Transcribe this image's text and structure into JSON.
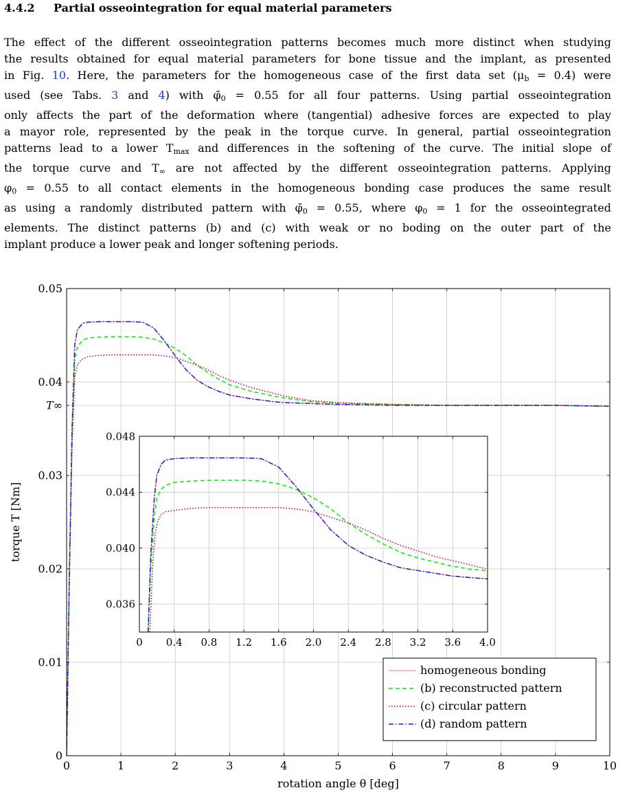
{
  "section": {
    "number": "4.4.2",
    "title": "Partial osseointegration for equal material parameters"
  },
  "paragraph": {
    "l1": "The effect of the different osseointegration patterns becomes much more distinct when studying",
    "l2": "the results obtained for equal material parameters for bone tissue and the implant, as presented",
    "l3a": "in Fig. ",
    "fig_ref": "10",
    "l3b": ". Here, the parameters for the homogeneous case of the first data set (μ",
    "l3sub": "b",
    "l3c": " = 0.4) were",
    "l4a": "used (see Tabs. ",
    "tab_ref1": "3",
    "l4b": " and ",
    "tab_ref2": "4",
    "l4c": ") with φ̄",
    "l4sub": "0",
    "l4d": " = 0.55 for all four patterns.  Using partial osseointegration",
    "l5": "only affects the part of the deformation where (tangential) adhesive forces are expected to play",
    "l6": "a mayor role, represented by the peak in the torque curve.  In general, partial osseointegration",
    "l7a": "patterns lead to a lower T",
    "l7sub": "max",
    "l7b": " and differences in the softening of the curve.  The initial slope of",
    "l8a": "the torque curve and T",
    "l8sub": "∞",
    "l8b": " are not affected by the different osseointegration patterns.  Applying",
    "l9a": "φ",
    "l9sub": "0",
    "l9b": " = 0.55 to all contact elements in the homogeneous bonding case produces the same result",
    "l10a": "as using a randomly distributed pattern with φ̄",
    "l10sub": "0",
    "l10b": " = 0.55, where φ",
    "l10sub2": "0",
    "l10c": " = 1 for the osseointegrated",
    "l11": "elements.  The distinct patterns (b) and (c) with weak or no boding on the outer part of the",
    "l12": "implant produce a lower peak and longer softening periods."
  },
  "chart_data": [
    {
      "type": "line",
      "xlabel": "rotation angle θ [deg]",
      "ylabel": "torque T [Nm]",
      "xlim": [
        0,
        10
      ],
      "ylim": [
        0,
        0.05
      ],
      "xticks": [
        "0",
        "1",
        "2",
        "3",
        "4",
        "5",
        "6",
        "7",
        "8",
        "9",
        "10"
      ],
      "xtick_values": [
        0,
        1,
        2,
        3,
        4,
        5,
        6,
        7,
        8,
        9,
        10
      ],
      "yticks": [
        "0",
        "0.01",
        "0.02",
        "0.03",
        "0.04",
        "0.05"
      ],
      "ytick_values": [
        0,
        0.01,
        0.02,
        0.03,
        0.04,
        0.05
      ],
      "extra_ytick": {
        "label": "T∞",
        "value": 0.0375
      },
      "grid": true,
      "legend_position": "bottom-right",
      "series": [
        {
          "name": "homogeneous bonding",
          "color": "#f4a6a6",
          "dash": "solid",
          "x": [
            0,
            0.05,
            0.1,
            0.15,
            0.2,
            0.3,
            0.4,
            0.6,
            0.8,
            1.0,
            1.2,
            1.4,
            1.6,
            1.8,
            2.0,
            2.2,
            2.4,
            2.6,
            2.8,
            3.0,
            3.4,
            3.8,
            4.0,
            4.5,
            5,
            6,
            7,
            8,
            9,
            10
          ],
          "y": [
            0,
            0.019,
            0.035,
            0.044,
            0.0456,
            0.0463,
            0.0464,
            0.04645,
            0.04645,
            0.04645,
            0.04645,
            0.0464,
            0.0458,
            0.0444,
            0.0428,
            0.0413,
            0.0402,
            0.0395,
            0.039,
            0.0386,
            0.0382,
            0.0379,
            0.0378,
            0.0377,
            0.0376,
            0.0375,
            0.0375,
            0.0375,
            0.0375,
            0.0374
          ]
        },
        {
          "name": "(b) reconstructed pattern",
          "color": "#00ee00",
          "dash": "dashed",
          "x": [
            0,
            0.05,
            0.1,
            0.15,
            0.2,
            0.3,
            0.4,
            0.6,
            0.8,
            1.0,
            1.2,
            1.4,
            1.6,
            1.8,
            2.0,
            2.2,
            2.4,
            2.6,
            2.8,
            3.0,
            3.4,
            3.8,
            4.0,
            4.5,
            5,
            6,
            7,
            8,
            9,
            10
          ],
          "y": [
            0,
            0.019,
            0.034,
            0.0425,
            0.0438,
            0.0445,
            0.0447,
            0.0448,
            0.04485,
            0.04485,
            0.04485,
            0.0448,
            0.0446,
            0.0442,
            0.0436,
            0.0428,
            0.0418,
            0.041,
            0.0403,
            0.0397,
            0.039,
            0.0385,
            0.0383,
            0.0379,
            0.0377,
            0.0376,
            0.0375,
            0.0375,
            0.0375,
            0.0374
          ]
        },
        {
          "name": "(c) circular pattern",
          "color": "#cc0033",
          "dash": "dotted",
          "x": [
            0,
            0.05,
            0.1,
            0.15,
            0.2,
            0.3,
            0.4,
            0.6,
            0.8,
            1.0,
            1.2,
            1.4,
            1.6,
            1.8,
            2.0,
            2.2,
            2.4,
            2.6,
            2.8,
            3.0,
            3.4,
            3.8,
            4.0,
            4.5,
            5,
            6,
            7,
            8,
            9,
            10
          ],
          "y": [
            0,
            0.019,
            0.033,
            0.0405,
            0.0419,
            0.0425,
            0.0427,
            0.04285,
            0.0429,
            0.0429,
            0.0429,
            0.0429,
            0.0429,
            0.0428,
            0.0426,
            0.0422,
            0.0418,
            0.0413,
            0.0407,
            0.0402,
            0.0394,
            0.0388,
            0.0385,
            0.038,
            0.0378,
            0.0376,
            0.0375,
            0.0375,
            0.0375,
            0.0374
          ]
        },
        {
          "name": "(d) random pattern",
          "color": "#1a1adb",
          "dash": "dashdot",
          "x": [
            0,
            0.05,
            0.1,
            0.15,
            0.2,
            0.3,
            0.4,
            0.6,
            0.8,
            1.0,
            1.2,
            1.4,
            1.6,
            1.8,
            2.0,
            2.2,
            2.4,
            2.6,
            2.8,
            3.0,
            3.4,
            3.8,
            4.0,
            4.5,
            5,
            6,
            7,
            8,
            9,
            10
          ],
          "y": [
            0,
            0.019,
            0.035,
            0.044,
            0.0456,
            0.0463,
            0.0464,
            0.04645,
            0.04645,
            0.04645,
            0.04645,
            0.0464,
            0.0458,
            0.0444,
            0.0428,
            0.0413,
            0.0402,
            0.0395,
            0.039,
            0.0386,
            0.0382,
            0.0379,
            0.0378,
            0.0377,
            0.0376,
            0.0375,
            0.0375,
            0.0375,
            0.0375,
            0.0374
          ]
        }
      ]
    },
    {
      "type": "line",
      "inset": true,
      "xlim": [
        0,
        4
      ],
      "ylim": [
        0.034,
        0.048
      ],
      "xticks": [
        "0",
        "0.4",
        "0.8",
        "1.2",
        "1.6",
        "2.0",
        "2.4",
        "2.8",
        "3.2",
        "3.6",
        "4.0"
      ],
      "xtick_values": [
        0,
        0.4,
        0.8,
        1.2,
        1.6,
        2.0,
        2.4,
        2.8,
        3.2,
        3.6,
        4.0
      ],
      "yticks": [
        "0.036",
        "0.040",
        "0.044",
        "0.048"
      ],
      "ytick_values": [
        0.036,
        0.04,
        0.044,
        0.048
      ],
      "grid": true,
      "series": [
        {
          "name": "homogeneous bonding",
          "color": "#f4a6a6",
          "dash": "solid",
          "x": [
            0.1,
            0.13,
            0.17,
            0.2,
            0.25,
            0.3,
            0.4,
            0.6,
            0.8,
            1.0,
            1.2,
            1.4,
            1.6,
            1.8,
            2.0,
            2.2,
            2.4,
            2.6,
            2.8,
            3.0,
            3.2,
            3.4,
            3.6,
            3.8,
            4.0
          ],
          "y": [
            0.034,
            0.0395,
            0.0435,
            0.0452,
            0.046,
            0.0463,
            0.0464,
            0.04645,
            0.04645,
            0.04645,
            0.04645,
            0.0464,
            0.0458,
            0.0444,
            0.0428,
            0.0413,
            0.0402,
            0.0395,
            0.039,
            0.0386,
            0.0384,
            0.0382,
            0.038,
            0.0379,
            0.0378
          ]
        },
        {
          "name": "(b) reconstructed pattern",
          "color": "#00ee00",
          "dash": "dashed",
          "x": [
            0.1,
            0.13,
            0.17,
            0.2,
            0.25,
            0.3,
            0.4,
            0.6,
            0.8,
            1.0,
            1.2,
            1.4,
            1.6,
            1.8,
            2.0,
            2.2,
            2.4,
            2.6,
            2.8,
            3.0,
            3.2,
            3.4,
            3.6,
            3.8,
            4.0
          ],
          "y": [
            0.034,
            0.0385,
            0.0422,
            0.0436,
            0.0442,
            0.0445,
            0.0447,
            0.0448,
            0.04485,
            0.04485,
            0.04485,
            0.0448,
            0.0446,
            0.0442,
            0.0436,
            0.0428,
            0.0418,
            0.041,
            0.0403,
            0.0397,
            0.0393,
            0.039,
            0.0387,
            0.0385,
            0.0384
          ]
        },
        {
          "name": "(c) circular pattern",
          "color": "#cc0033",
          "dash": "dotted",
          "x": [
            0.12,
            0.15,
            0.18,
            0.21,
            0.25,
            0.3,
            0.4,
            0.6,
            0.8,
            1.0,
            1.2,
            1.4,
            1.6,
            1.8,
            2.0,
            2.2,
            2.4,
            2.6,
            2.8,
            3.0,
            3.2,
            3.4,
            3.6,
            3.8,
            4.0
          ],
          "y": [
            0.034,
            0.0385,
            0.041,
            0.0419,
            0.0424,
            0.0426,
            0.0427,
            0.04285,
            0.0429,
            0.0429,
            0.0429,
            0.0429,
            0.0429,
            0.0428,
            0.0426,
            0.0422,
            0.0418,
            0.0413,
            0.0407,
            0.0402,
            0.0398,
            0.0394,
            0.0391,
            0.0388,
            0.0385
          ]
        },
        {
          "name": "(d) random pattern",
          "color": "#1a1adb",
          "dash": "dashdot",
          "x": [
            0.1,
            0.13,
            0.17,
            0.2,
            0.25,
            0.3,
            0.4,
            0.6,
            0.8,
            1.0,
            1.2,
            1.4,
            1.6,
            1.8,
            2.0,
            2.2,
            2.4,
            2.6,
            2.8,
            3.0,
            3.2,
            3.4,
            3.6,
            3.8,
            4.0
          ],
          "y": [
            0.034,
            0.0395,
            0.0435,
            0.0452,
            0.046,
            0.0463,
            0.0464,
            0.04645,
            0.04645,
            0.04645,
            0.04645,
            0.0464,
            0.0458,
            0.0444,
            0.0428,
            0.0413,
            0.0402,
            0.0395,
            0.039,
            0.0386,
            0.0384,
            0.0382,
            0.038,
            0.0379,
            0.0378
          ]
        }
      ]
    }
  ]
}
